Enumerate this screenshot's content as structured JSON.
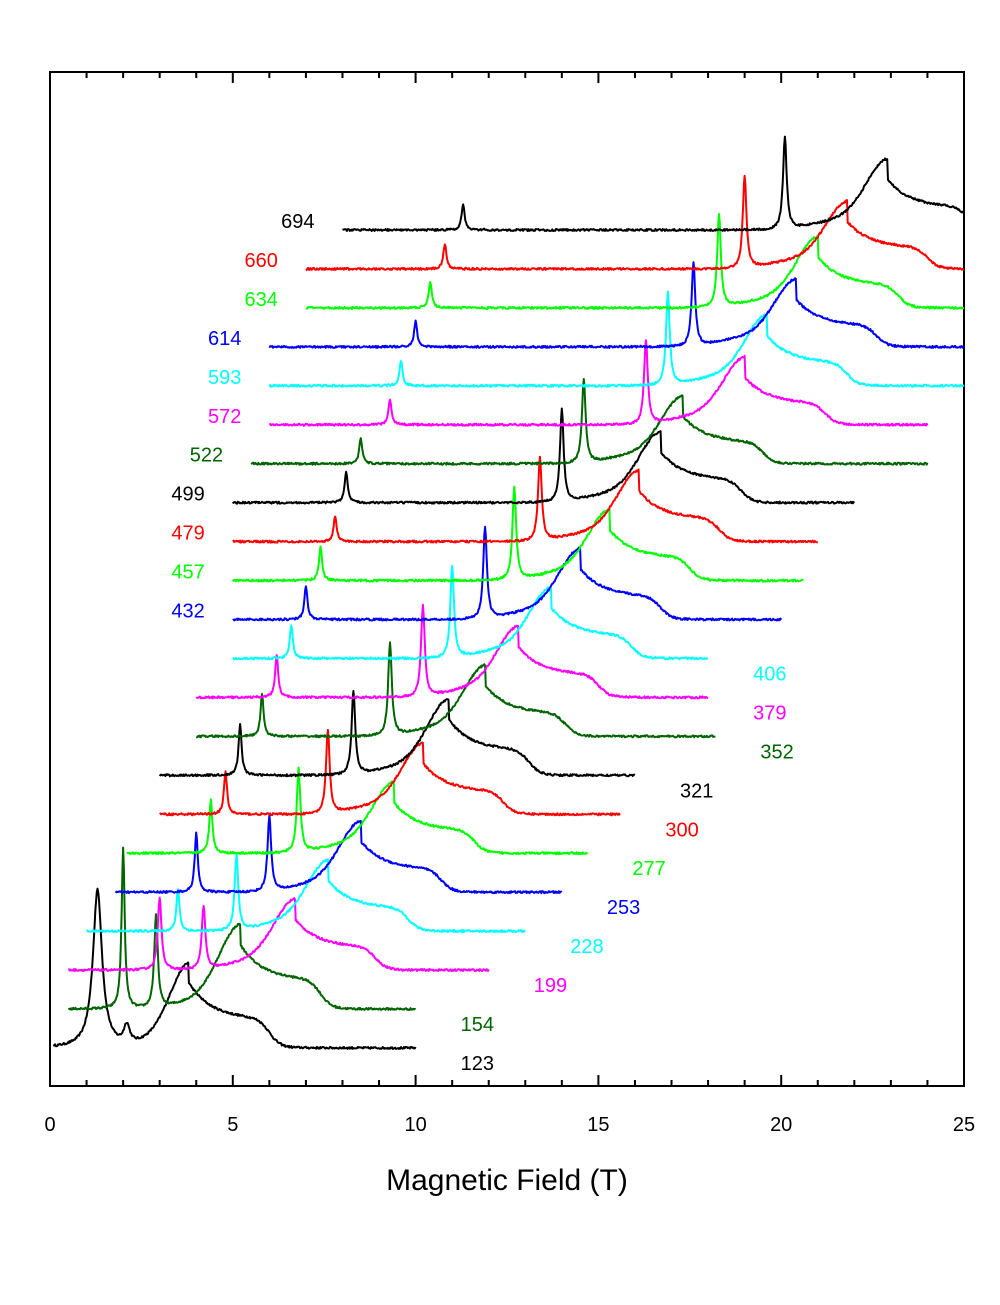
{
  "chart_data": {
    "type": "line",
    "title": "",
    "xlabel": "Magnetic Field (T)",
    "ylabel": "",
    "xlim": [
      0,
      25
    ],
    "xticks": [
      "0",
      "5",
      "10",
      "15",
      "20",
      "25"
    ],
    "grid": false,
    "legend": "none; each trace labeled with its number next to it",
    "series": [
      {
        "label": "123",
        "color": "#000000",
        "x_range": [
          0.1,
          10
        ],
        "peaks": [
          1.3,
          2.1,
          3.8
        ],
        "heights": [
          0.93,
          0.12,
          0.38
        ],
        "widths": [
          0.15,
          0.1,
          0.45
        ]
      },
      {
        "label": "154",
        "color": "#006400",
        "x_range": [
          0.5,
          10
        ],
        "peaks": [
          2.0,
          2.9,
          5.2
        ],
        "heights": [
          0.95,
          0.55,
          0.38
        ],
        "widths": [
          0.05,
          0.06,
          0.5
        ]
      },
      {
        "label": "199",
        "color": "#ff00ff",
        "x_range": [
          0.5,
          12
        ],
        "peaks": [
          3.0,
          4.2,
          6.7
        ],
        "heights": [
          0.43,
          0.38,
          0.3
        ],
        "widths": [
          0.06,
          0.06,
          0.5
        ]
      },
      {
        "label": "228",
        "color": "#00ffff",
        "x_range": [
          1.0,
          13
        ],
        "peaks": [
          3.5,
          5.1,
          7.6
        ],
        "heights": [
          0.25,
          0.45,
          0.3
        ],
        "widths": [
          0.05,
          0.06,
          0.5
        ]
      },
      {
        "label": "253",
        "color": "#0000ff",
        "x_range": [
          1.8,
          14
        ],
        "peaks": [
          4.0,
          6.0,
          8.5
        ],
        "heights": [
          0.35,
          0.45,
          0.3
        ],
        "widths": [
          0.05,
          0.06,
          0.5
        ]
      },
      {
        "label": "277",
        "color": "#00ff00",
        "x_range": [
          2.1,
          14.7
        ],
        "peaks": [
          4.4,
          6.8,
          9.4
        ],
        "heights": [
          0.32,
          0.5,
          0.3
        ],
        "widths": [
          0.05,
          0.06,
          0.5
        ]
      },
      {
        "label": "300",
        "color": "#ff0000",
        "x_range": [
          3.0,
          15.6
        ],
        "peaks": [
          4.8,
          7.6,
          10.2
        ],
        "heights": [
          0.25,
          0.5,
          0.3
        ],
        "widths": [
          0.05,
          0.06,
          0.5
        ]
      },
      {
        "label": "321",
        "color": "#000000",
        "x_range": [
          3.0,
          16
        ],
        "peaks": [
          5.2,
          8.3,
          10.9
        ],
        "heights": [
          0.3,
          0.5,
          0.33
        ],
        "widths": [
          0.05,
          0.06,
          0.5
        ]
      },
      {
        "label": "352",
        "color": "#006400",
        "x_range": [
          4.0,
          18.2
        ],
        "peaks": [
          5.8,
          9.3,
          11.9
        ],
        "heights": [
          0.25,
          0.55,
          0.3
        ],
        "widths": [
          0.05,
          0.06,
          0.5
        ]
      },
      {
        "label": "379",
        "color": "#ff00ff",
        "x_range": [
          4.0,
          18
        ],
        "peaks": [
          6.2,
          10.2,
          12.8
        ],
        "heights": [
          0.25,
          0.55,
          0.3
        ],
        "widths": [
          0.05,
          0.06,
          0.5
        ]
      },
      {
        "label": "406",
        "color": "#00ffff",
        "x_range": [
          5.0,
          18
        ],
        "peaks": [
          6.6,
          11.0,
          13.7
        ],
        "heights": [
          0.2,
          0.55,
          0.3
        ],
        "widths": [
          0.05,
          0.06,
          0.5
        ]
      },
      {
        "label": "432",
        "color": "#0000ff",
        "x_range": [
          5.0,
          20
        ],
        "peaks": [
          7.0,
          11.9,
          14.5
        ],
        "heights": [
          0.2,
          0.55,
          0.3
        ],
        "widths": [
          0.05,
          0.06,
          0.5
        ]
      },
      {
        "label": "457",
        "color": "#00ff00",
        "x_range": [
          5.0,
          20.6
        ],
        "peaks": [
          7.4,
          12.7,
          15.3
        ],
        "heights": [
          0.2,
          0.55,
          0.3
        ],
        "widths": [
          0.05,
          0.06,
          0.5
        ]
      },
      {
        "label": "479",
        "color": "#ff0000",
        "x_range": [
          5.0,
          21
        ],
        "peaks": [
          7.8,
          13.4,
          16.1
        ],
        "heights": [
          0.15,
          0.5,
          0.3
        ],
        "widths": [
          0.05,
          0.06,
          0.5
        ]
      },
      {
        "label": "499",
        "color": "#000000",
        "x_range": [
          5.0,
          22
        ],
        "peaks": [
          8.1,
          14.0,
          16.7
        ],
        "heights": [
          0.18,
          0.55,
          0.3
        ],
        "widths": [
          0.05,
          0.06,
          0.5
        ]
      },
      {
        "label": "522",
        "color": "#006400",
        "x_range": [
          5.5,
          24
        ],
        "peaks": [
          8.5,
          14.6,
          17.3
        ],
        "heights": [
          0.15,
          0.5,
          0.28
        ],
        "widths": [
          0.05,
          0.06,
          0.5
        ]
      },
      {
        "label": "572",
        "color": "#ff00ff",
        "x_range": [
          6.0,
          24
        ],
        "peaks": [
          9.3,
          16.3,
          19.0
        ],
        "heights": [
          0.15,
          0.5,
          0.28
        ],
        "widths": [
          0.05,
          0.06,
          0.5
        ]
      },
      {
        "label": "593",
        "color": "#00ffff",
        "x_range": [
          6.0,
          25
        ],
        "peaks": [
          9.6,
          16.9,
          19.6
        ],
        "heights": [
          0.15,
          0.55,
          0.3
        ],
        "widths": [
          0.05,
          0.06,
          0.5
        ]
      },
      {
        "label": "614",
        "color": "#0000ff",
        "x_range": [
          6.0,
          25
        ],
        "peaks": [
          10.0,
          17.6,
          20.4
        ],
        "heights": [
          0.15,
          0.5,
          0.28
        ],
        "widths": [
          0.05,
          0.06,
          0.5
        ]
      },
      {
        "label": "634",
        "color": "#00ff00",
        "x_range": [
          7.0,
          25
        ],
        "peaks": [
          10.4,
          18.3,
          21.0
        ],
        "heights": [
          0.15,
          0.55,
          0.3
        ],
        "widths": [
          0.05,
          0.06,
          0.5
        ]
      },
      {
        "label": "660",
        "color": "#ff0000",
        "x_range": [
          7.0,
          25
        ],
        "peaks": [
          10.8,
          19.0,
          21.8
        ],
        "heights": [
          0.15,
          0.55,
          0.28
        ],
        "widths": [
          0.05,
          0.06,
          0.5
        ]
      },
      {
        "label": "694",
        "color": "#000000",
        "x_range": [
          8.0,
          25
        ],
        "peaks": [
          11.3,
          20.1,
          22.9
        ],
        "heights": [
          0.15,
          0.55,
          0.3
        ],
        "widths": [
          0.05,
          0.06,
          0.5
        ]
      }
    ]
  }
}
